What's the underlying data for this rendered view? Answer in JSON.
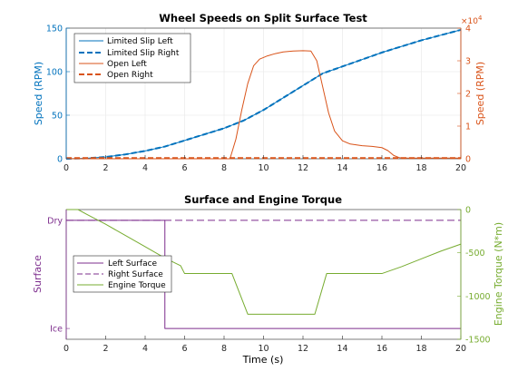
{
  "colors": {
    "blue": "#0072BD",
    "orange": "#D95319",
    "purple": "#7E2F8E",
    "green": "#77AC30",
    "axis": "#262626",
    "grid": "#e6e6e6"
  },
  "chart_data": [
    {
      "type": "line",
      "title": "Wheel Speeds on Split Surface Test",
      "xlabel": "",
      "xlim": [
        0,
        20
      ],
      "xticks": [
        0,
        2,
        4,
        6,
        8,
        10,
        12,
        14,
        16,
        18,
        20
      ],
      "grid": true,
      "legend_position": "top-left",
      "left_axis": {
        "label": "Speed (RPM)",
        "ylim": [
          0,
          150
        ],
        "ticks": [
          0,
          50,
          100,
          150
        ]
      },
      "right_axis": {
        "label": "Speed (RPM)",
        "ylim": [
          0,
          4
        ],
        "ticks": [
          0,
          1,
          2,
          3,
          4
        ],
        "exponent_label": "×10",
        "exponent_power": "4"
      },
      "series": [
        {
          "name": "Limited Slip Left",
          "axis": "left",
          "style": "solid",
          "color": "blue",
          "x": [
            0,
            1,
            2,
            3,
            4,
            5,
            6,
            7,
            8,
            9,
            10,
            11,
            12,
            13,
            14,
            15,
            16,
            17,
            18,
            19,
            20
          ],
          "y": [
            0,
            0.5,
            2,
            5,
            9,
            14,
            21,
            28,
            35,
            44,
            56,
            70,
            84,
            98,
            106,
            114,
            122,
            129,
            136,
            142,
            148
          ]
        },
        {
          "name": "Limited Slip Right",
          "axis": "left",
          "style": "dashed",
          "color": "blue",
          "x": [
            0,
            1,
            2,
            3,
            4,
            5,
            6,
            7,
            8,
            9,
            10,
            11,
            12,
            13,
            14,
            15,
            16,
            17,
            18,
            19,
            20
          ],
          "y": [
            0,
            0.5,
            2,
            5,
            9,
            14,
            21,
            28,
            35,
            44,
            56,
            70,
            84,
            98,
            106,
            114,
            122,
            129,
            136,
            142,
            148
          ]
        },
        {
          "name": "Open Left",
          "axis": "right",
          "style": "solid",
          "color": "orange",
          "x": [
            0,
            8.3,
            8.6,
            8.9,
            9.2,
            9.5,
            9.8,
            10.2,
            10.6,
            11,
            11.5,
            12,
            12.4,
            12.7,
            13,
            13.3,
            13.6,
            14,
            14.4,
            15,
            15.5,
            16,
            16.3,
            16.6,
            16.9,
            17.2,
            20
          ],
          "y": [
            0,
            0,
            0.6,
            1.5,
            2.3,
            2.85,
            3.05,
            3.15,
            3.22,
            3.27,
            3.3,
            3.31,
            3.3,
            3.0,
            2.2,
            1.4,
            0.85,
            0.55,
            0.45,
            0.4,
            0.38,
            0.34,
            0.25,
            0.1,
            0.03,
            0.02,
            0.02
          ]
        },
        {
          "name": "Open Right",
          "axis": "right",
          "style": "dashed",
          "color": "orange",
          "x": [
            0,
            20
          ],
          "y": [
            0.02,
            0.02
          ]
        }
      ]
    },
    {
      "type": "line",
      "title": "Surface and Engine Torque",
      "xlabel": "Time (s)",
      "xlim": [
        0,
        20
      ],
      "xticks": [
        0,
        2,
        4,
        6,
        8,
        10,
        12,
        14,
        16,
        18,
        20
      ],
      "grid": false,
      "legend_position": "middle-left",
      "left_axis": {
        "label": "Surface",
        "ylim": [
          -0.1,
          1.1
        ],
        "tick_values": [
          0,
          1
        ],
        "tick_labels": [
          "Ice",
          "Dry"
        ]
      },
      "right_axis": {
        "label": "Engine Torque (N*m)",
        "ylim": [
          -1500,
          0
        ],
        "ticks": [
          0,
          -500,
          -1000,
          -1500
        ]
      },
      "series": [
        {
          "name": "Left Surface",
          "axis": "left",
          "style": "solid",
          "color": "purple",
          "x": [
            0,
            5,
            5,
            20
          ],
          "y": [
            1,
            1,
            0,
            0
          ]
        },
        {
          "name": "Right Surface",
          "axis": "left",
          "style": "dashed",
          "color": "purple",
          "x": [
            0,
            20
          ],
          "y": [
            1,
            1
          ]
        },
        {
          "name": "Engine Torque",
          "axis": "right",
          "style": "solid",
          "color": "green",
          "x": [
            0,
            0.6,
            1,
            2,
            3,
            4,
            5,
            5.8,
            6,
            7,
            8.4,
            9.2,
            10,
            11,
            12.6,
            13.2,
            14,
            16,
            17,
            18,
            19,
            20
          ],
          "y": [
            0,
            0,
            -50,
            -170,
            -300,
            -430,
            -560,
            -650,
            -740,
            -740,
            -740,
            -1210,
            -1210,
            -1210,
            -1210,
            -740,
            -740,
            -740,
            -660,
            -570,
            -480,
            -400
          ]
        }
      ]
    }
  ]
}
